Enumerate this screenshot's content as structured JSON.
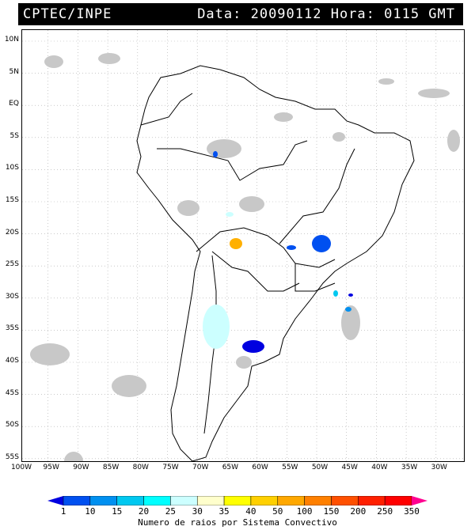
{
  "header": {
    "source": "CPTEC/INPE",
    "datetime": "Data: 20090112 Hora: 0115 GMT"
  },
  "lat_labels": [
    "10N",
    "5N",
    "EQ",
    "5S",
    "10S",
    "15S",
    "20S",
    "25S",
    "30S",
    "35S",
    "40S",
    "45S",
    "50S",
    "55S"
  ],
  "lon_labels": [
    "100W",
    "95W",
    "90W",
    "85W",
    "80W",
    "75W",
    "70W",
    "65W",
    "60W",
    "55W",
    "50W",
    "45W",
    "40W",
    "35W",
    "30W"
  ],
  "colorbar": {
    "labels": [
      "1",
      "10",
      "15",
      "20",
      "25",
      "30",
      "35",
      "40",
      "50",
      "100",
      "150",
      "200",
      "250",
      "350"
    ],
    "colors": [
      "#0000e0",
      "#0050f0",
      "#0090f0",
      "#00c8f0",
      "#00ffff",
      "#ccffff",
      "#ffffcc",
      "#ffff00",
      "#ffd000",
      "#ffa800",
      "#ff8000",
      "#ff5000",
      "#ff2000",
      "#ff0000",
      "#ff0090"
    ],
    "caption": "Numero de raios por Sistema Convectivo"
  },
  "colors": {
    "cloud": "#c8c8c8",
    "border": "#000000",
    "grid": "#aaaaaa"
  }
}
